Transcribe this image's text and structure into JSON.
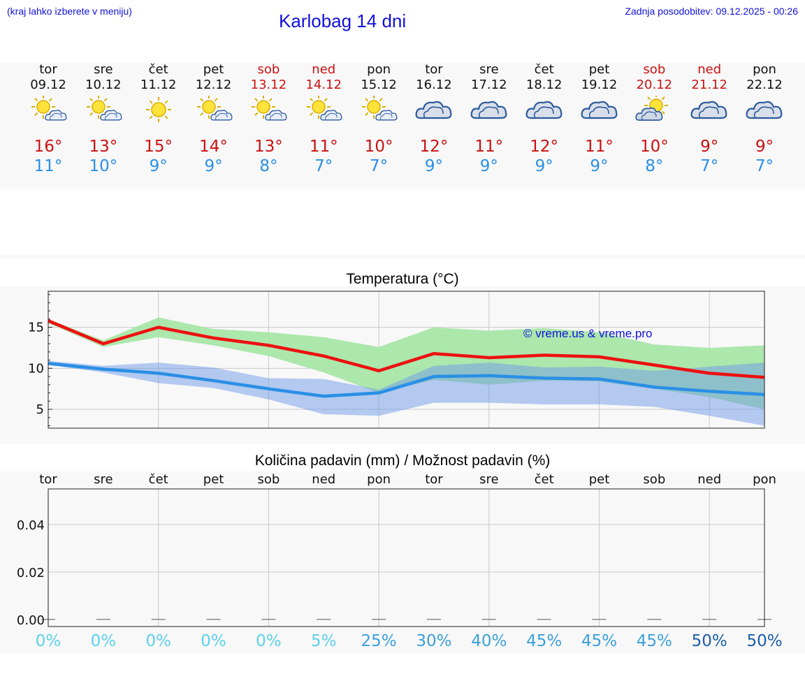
{
  "header": {
    "left_note": "(kraj lahko izberete v meniju)",
    "title": "Karlobag 14 dni",
    "updated": "Zadnja posodobitev: 09.12.2025 - 00:26"
  },
  "days": [
    {
      "name": "tor",
      "date": "09.12",
      "weekend": false,
      "icon": "sun-cloud-icon",
      "max": "16°",
      "min": "11°"
    },
    {
      "name": "sre",
      "date": "10.12",
      "weekend": false,
      "icon": "sun-cloud-icon",
      "max": "13°",
      "min": "10°"
    },
    {
      "name": "čet",
      "date": "11.12",
      "weekend": false,
      "icon": "sun-icon",
      "max": "15°",
      "min": "9°"
    },
    {
      "name": "pet",
      "date": "12.12",
      "weekend": false,
      "icon": "sun-cloud-icon",
      "max": "14°",
      "min": "9°"
    },
    {
      "name": "sob",
      "date": "13.12",
      "weekend": true,
      "icon": "sun-cloud-icon",
      "max": "13°",
      "min": "8°"
    },
    {
      "name": "ned",
      "date": "14.12",
      "weekend": true,
      "icon": "sun-cloud-icon",
      "max": "11°",
      "min": "7°"
    },
    {
      "name": "pon",
      "date": "15.12",
      "weekend": false,
      "icon": "sun-cloud-icon",
      "max": "10°",
      "min": "7°"
    },
    {
      "name": "tor",
      "date": "16.12",
      "weekend": false,
      "icon": "cloud-icon",
      "max": "12°",
      "min": "9°"
    },
    {
      "name": "sre",
      "date": "17.12",
      "weekend": false,
      "icon": "cloud-icon",
      "max": "11°",
      "min": "9°"
    },
    {
      "name": "čet",
      "date": "18.12",
      "weekend": false,
      "icon": "cloud-icon",
      "max": "12°",
      "min": "9°"
    },
    {
      "name": "pet",
      "date": "19.12",
      "weekend": false,
      "icon": "cloud-icon",
      "max": "11°",
      "min": "9°"
    },
    {
      "name": "sob",
      "date": "20.12",
      "weekend": true,
      "icon": "cloud-sun-icon",
      "max": "10°",
      "min": "8°"
    },
    {
      "name": "ned",
      "date": "21.12",
      "weekend": true,
      "icon": "cloud-icon",
      "max": "9°",
      "min": "7°"
    },
    {
      "name": "pon",
      "date": "22.12",
      "weekend": false,
      "icon": "cloud-icon",
      "max": "9°",
      "min": "7°"
    }
  ],
  "colors": {
    "max": "#cc1010",
    "min": "#2a8fe6",
    "max_band": "#a8e6a8",
    "min_band": "#aac4f2",
    "overlap": "#80c4a8"
  },
  "watermark": "© vreme.us & vreme.pro",
  "chart_data": [
    {
      "type": "line",
      "title": "Temperatura (°C)",
      "x": [
        0,
        1,
        2,
        3,
        4,
        5,
        6,
        7,
        8,
        9,
        10,
        11,
        12,
        13
      ],
      "ylim": [
        2.7,
        19.4
      ],
      "yticks": [
        "5",
        "10",
        "15"
      ],
      "series": [
        {
          "name": "max",
          "color": "#ee1010",
          "values": [
            15.8,
            13.0,
            15.0,
            13.7,
            12.8,
            11.5,
            9.7,
            11.8,
            11.3,
            11.6,
            11.4,
            10.4,
            9.4,
            8.9
          ]
        },
        {
          "name": "min",
          "color": "#2a8fe6",
          "values": [
            10.6,
            9.9,
            9.4,
            8.5,
            7.5,
            6.6,
            7.0,
            9.0,
            9.1,
            8.8,
            8.7,
            7.7,
            7.2,
            6.8
          ]
        }
      ],
      "bands": [
        {
          "name": "max_range",
          "lower": [
            15.5,
            12.6,
            13.8,
            12.8,
            11.5,
            9.5,
            7.0,
            8.6,
            8.0,
            8.5,
            8.4,
            7.5,
            6.5,
            5.0
          ],
          "upper": [
            16.0,
            13.4,
            16.2,
            14.8,
            14.4,
            13.8,
            12.6,
            15.0,
            14.6,
            14.9,
            14.4,
            12.9,
            12.5,
            12.8
          ]
        },
        {
          "name": "min_range",
          "lower": [
            10.4,
            9.5,
            8.2,
            7.6,
            6.2,
            4.4,
            4.2,
            5.8,
            5.8,
            5.6,
            5.6,
            5.3,
            4.2,
            3.0
          ],
          "upper": [
            10.9,
            10.3,
            10.7,
            10.1,
            8.8,
            8.7,
            7.4,
            10.3,
            10.7,
            10.1,
            10.2,
            9.7,
            10.2,
            10.7
          ]
        }
      ]
    },
    {
      "type": "bar",
      "title": "Količina padavin (mm) / Možnost padavin (%)",
      "categories": [
        "tor",
        "sre",
        "čet",
        "pet",
        "sob",
        "ned",
        "pon",
        "tor",
        "sre",
        "čet",
        "pet",
        "sob",
        "ned",
        "pon"
      ],
      "values": [
        0,
        0,
        0,
        0,
        0,
        0,
        0,
        0,
        0,
        0,
        0,
        0,
        0,
        0
      ],
      "ylim": [
        -0.003,
        0.055
      ],
      "yticks": [
        "0.00",
        "0.02",
        "0.04"
      ],
      "probabilities": [
        "0%",
        "0%",
        "0%",
        "0%",
        "0%",
        "5%",
        "25%",
        "30%",
        "40%",
        "45%",
        "45%",
        "45%",
        "50%",
        "50%"
      ],
      "prob_colors": [
        "#5ad2ec",
        "#5ad2ec",
        "#5ad2ec",
        "#5ad2ec",
        "#5ad2ec",
        "#5ad2ec",
        "#3aa0da",
        "#3aa0da",
        "#3aa0da",
        "#3aa0da",
        "#3aa0da",
        "#3aa0da",
        "#1b5ea8",
        "#1b5ea8"
      ]
    }
  ]
}
